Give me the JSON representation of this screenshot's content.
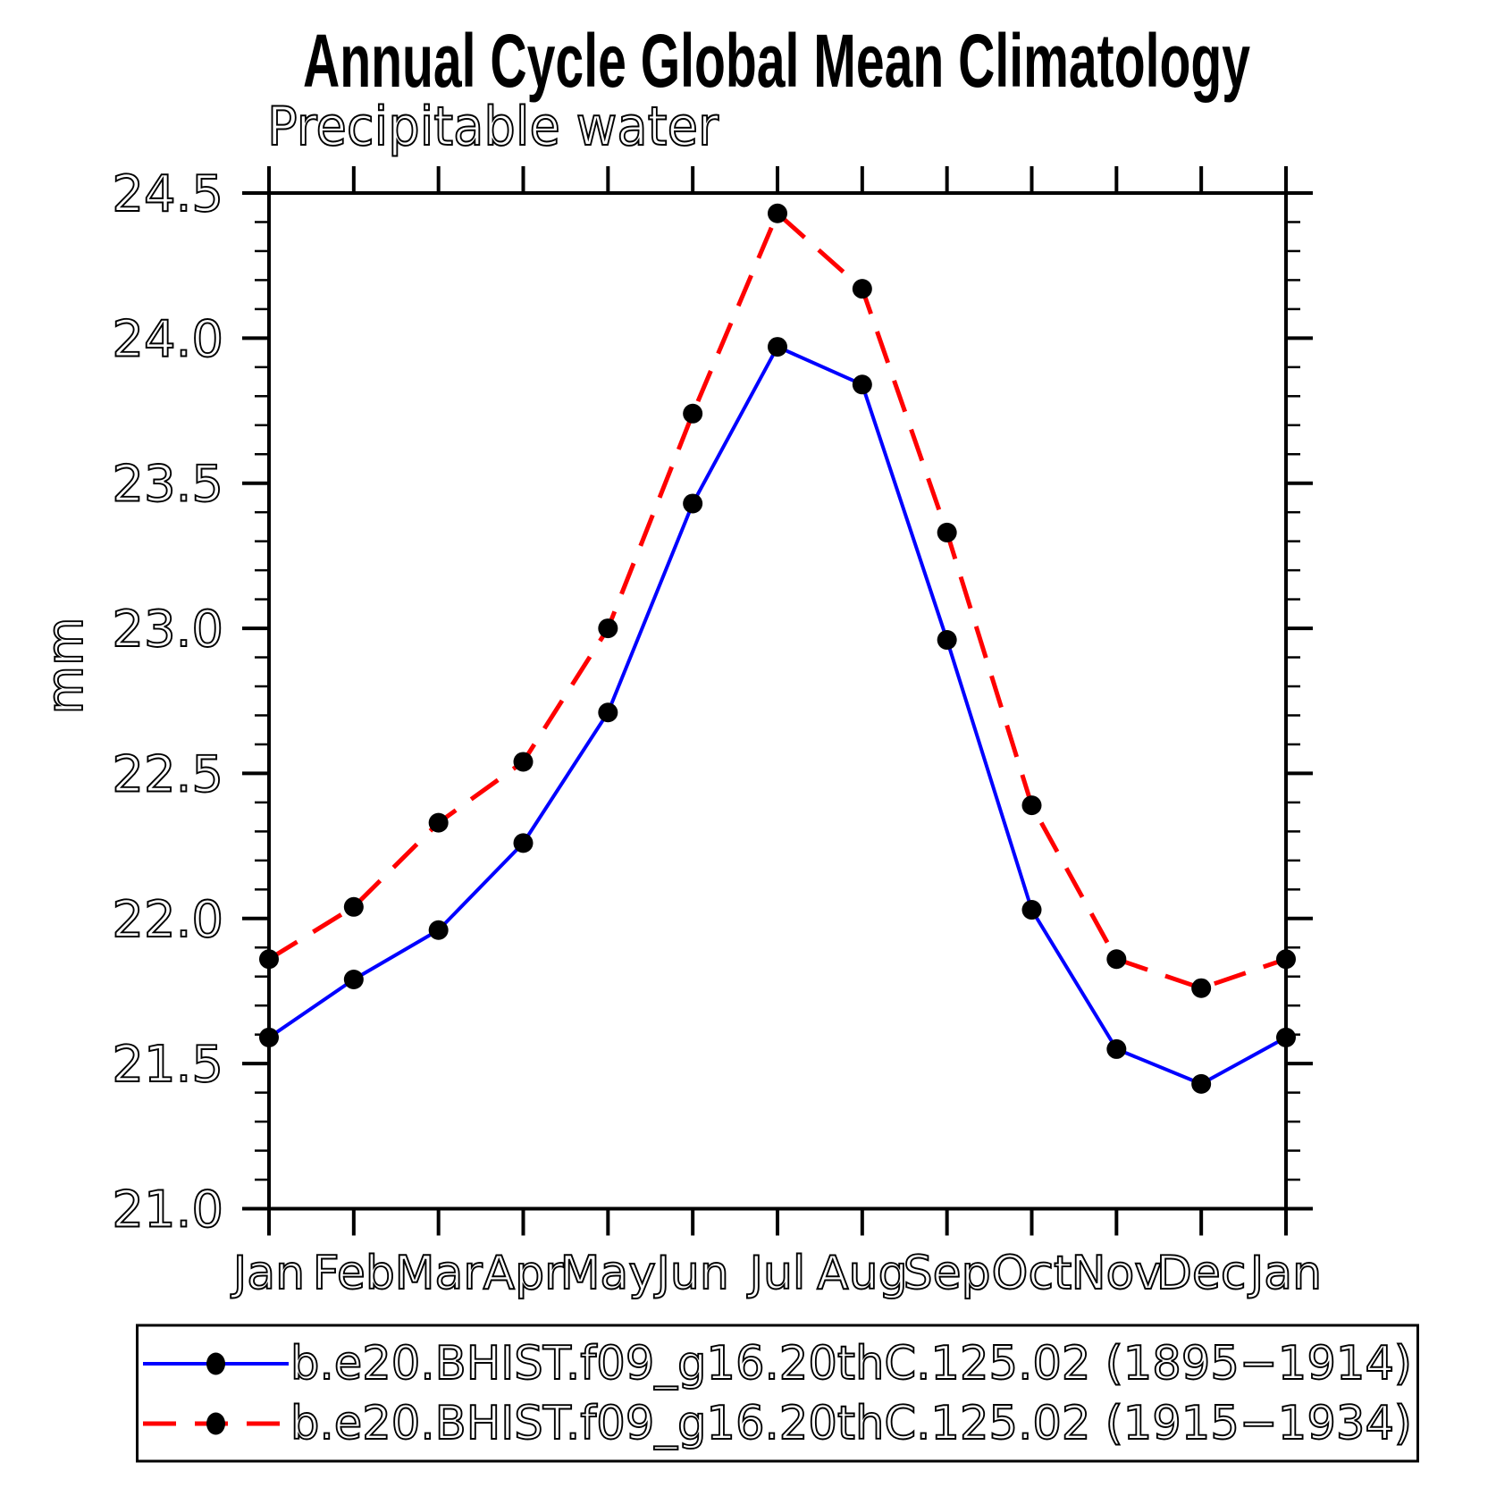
{
  "header": {
    "title": "Annual Cycle Global Mean Climatology",
    "subtitle": "Precipitable water"
  },
  "chart_data": {
    "type": "line",
    "title": "Annual Cycle Global Mean Climatology",
    "subtitle": "Precipitable water",
    "xlabel": "",
    "ylabel": "mm",
    "categories": [
      "Jan",
      "Feb",
      "Mar",
      "Apr",
      "May",
      "Jun",
      "Jul",
      "Aug",
      "Sep",
      "Oct",
      "Nov",
      "Dec",
      "Jan"
    ],
    "ylim": [
      21.0,
      24.5
    ],
    "ytick_major_step": 0.5,
    "ytick_minor_step": 0.1,
    "ytick_labels": [
      "21.0",
      "21.5",
      "22.0",
      "22.5",
      "23.0",
      "23.5",
      "24.0",
      "24.5"
    ],
    "grid": false,
    "legend_position": "bottom",
    "marker": {
      "shape": "circle",
      "color": "#000000"
    },
    "series": [
      {
        "name": "b.e20.BHIST.f09_g16.20thC.125.02 (1895−1914)",
        "color": "#0000ff",
        "line_style": "solid",
        "values": [
          21.59,
          21.79,
          21.96,
          22.26,
          22.71,
          23.43,
          23.97,
          23.84,
          22.96,
          22.03,
          21.55,
          21.43,
          21.59
        ]
      },
      {
        "name": "b.e20.BHIST.f09_g16.20thC.125.02 (1915−1934)",
        "color": "#ff0000",
        "line_style": "dashed",
        "values": [
          21.86,
          22.04,
          22.33,
          22.54,
          23.0,
          23.74,
          24.43,
          24.17,
          23.33,
          22.39,
          21.86,
          21.76,
          21.86
        ]
      }
    ]
  }
}
